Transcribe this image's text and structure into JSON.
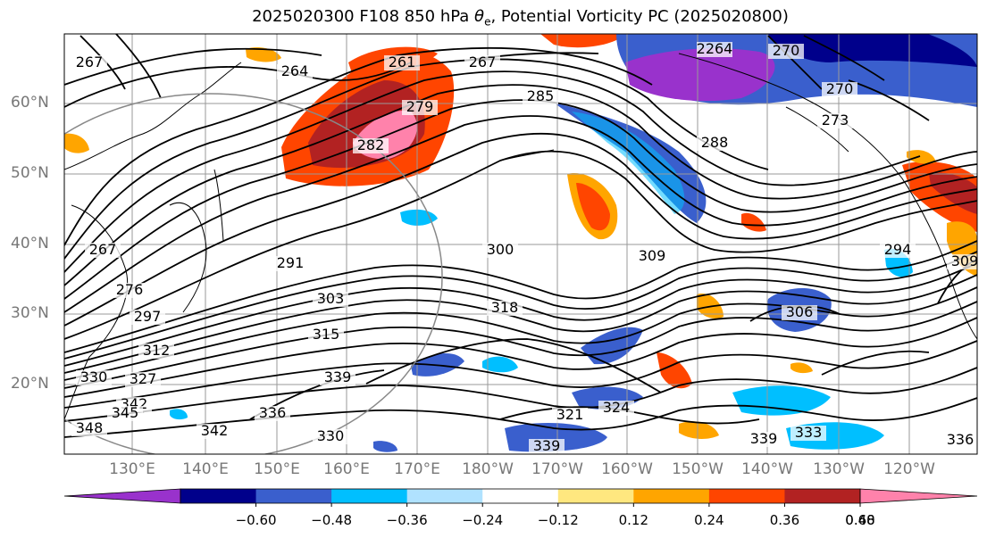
{
  "title_text": "2025020300 F108 850 hPa ",
  "title_theta": "θ",
  "title_sub": "e",
  "title_rest": ", Potential Vorticity PC (2025020800)",
  "lat_labels": [
    "60°N",
    "50°N",
    "40°N",
    "30°N",
    "20°N"
  ],
  "lon_labels": [
    "130°E",
    "140°E",
    "150°E",
    "160°E",
    "170°E",
    "180°W",
    "170°W",
    "160°W",
    "150°W",
    "140°W",
    "130°W",
    "120°W"
  ],
  "contour_labels": [
    "267",
    "264",
    "261",
    "267",
    "2264",
    "270",
    "270",
    "285",
    "279",
    "282",
    "288",
    "273",
    "267",
    "276",
    "300",
    "309",
    "291",
    "294",
    "303",
    "297",
    "318",
    "306",
    "315",
    "312",
    "330",
    "327",
    "342",
    "339",
    "345",
    "336",
    "321",
    "324",
    "339",
    "333",
    "336",
    "342",
    "339",
    "330",
    "348",
    "309"
  ],
  "colorbar": {
    "tick_labels": [
      "−0.60",
      "−0.48",
      "−0.36",
      "−0.24",
      "−0.12",
      "0.12",
      "0.24",
      "0.36",
      "0.48",
      "0.60"
    ],
    "colors": [
      "#9932cc",
      "#00008b",
      "#3a5fcd",
      "#00bfff",
      "#b0e2ff",
      "#ffffff",
      "#ffe77f",
      "#ffa500",
      "#ff4500",
      "#b22222",
      "#ff82ab"
    ]
  }
}
